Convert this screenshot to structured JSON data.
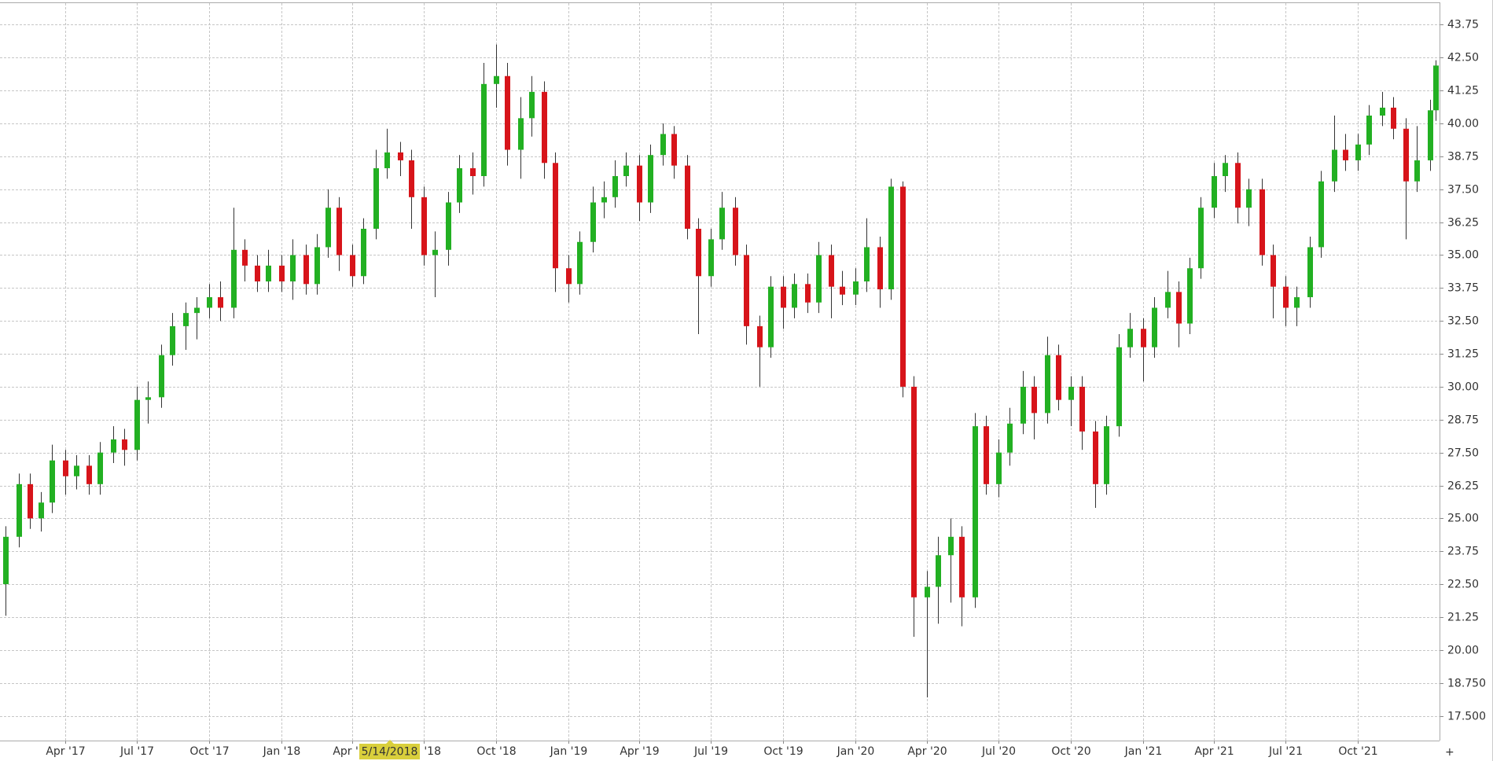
{
  "chart_data": {
    "type": "candlestick",
    "x": [
      "2017-01-15",
      "2017-02-01",
      "2017-02-15",
      "2017-03-01",
      "2017-03-15",
      "2017-04-01",
      "2017-04-15",
      "2017-05-01",
      "2017-05-15",
      "2017-06-01",
      "2017-06-15",
      "2017-07-01",
      "2017-07-15",
      "2017-08-01",
      "2017-08-15",
      "2017-09-01",
      "2017-09-15",
      "2017-10-01",
      "2017-10-15",
      "2017-11-01",
      "2017-11-15",
      "2017-12-01",
      "2017-12-15",
      "2018-01-01",
      "2018-01-15",
      "2018-02-01",
      "2018-02-15",
      "2018-03-01",
      "2018-03-15",
      "2018-04-01",
      "2018-04-15",
      "2018-05-01",
      "2018-05-15",
      "2018-06-01",
      "2018-06-15",
      "2018-07-01",
      "2018-07-15",
      "2018-08-01",
      "2018-08-15",
      "2018-09-01",
      "2018-09-15",
      "2018-10-01",
      "2018-10-15",
      "2018-11-01",
      "2018-11-15",
      "2018-12-01",
      "2018-12-15",
      "2019-01-01",
      "2019-01-15",
      "2019-02-01",
      "2019-02-15",
      "2019-03-01",
      "2019-03-15",
      "2019-04-01",
      "2019-04-15",
      "2019-05-01",
      "2019-05-15",
      "2019-06-01",
      "2019-06-15",
      "2019-07-01",
      "2019-07-15",
      "2019-08-01",
      "2019-08-15",
      "2019-09-01",
      "2019-09-15",
      "2019-10-01",
      "2019-10-15",
      "2019-11-01",
      "2019-11-15",
      "2019-12-01",
      "2019-12-15",
      "2020-01-01",
      "2020-01-15",
      "2020-02-01",
      "2020-02-15",
      "2020-03-01",
      "2020-03-15",
      "2020-04-01",
      "2020-04-15",
      "2020-05-01",
      "2020-05-15",
      "2020-06-01",
      "2020-06-15",
      "2020-07-01",
      "2020-07-15",
      "2020-08-01",
      "2020-08-15",
      "2020-09-01",
      "2020-09-15",
      "2020-10-01",
      "2020-10-15",
      "2020-11-01",
      "2020-11-15",
      "2020-12-01",
      "2020-12-15",
      "2021-01-01",
      "2021-01-15",
      "2021-02-01",
      "2021-02-15",
      "2021-03-01",
      "2021-03-15",
      "2021-04-01",
      "2021-04-15",
      "2021-05-01",
      "2021-05-15",
      "2021-06-01",
      "2021-06-15",
      "2021-07-01",
      "2021-07-15",
      "2021-08-01",
      "2021-08-15",
      "2021-09-01",
      "2021-09-15",
      "2021-10-01",
      "2021-10-15",
      "2021-11-01",
      "2021-11-15",
      "2021-12-01",
      "2021-12-15",
      "2022-01-01",
      "2022-01-08"
    ],
    "open": [
      22.5,
      24.3,
      26.3,
      25.0,
      25.6,
      27.2,
      26.6,
      27.0,
      26.3,
      27.5,
      28.0,
      27.6,
      29.5,
      29.6,
      31.2,
      32.3,
      32.8,
      33.0,
      33.4,
      33.0,
      35.2,
      34.6,
      34.0,
      34.6,
      34.0,
      35.0,
      33.9,
      35.3,
      36.8,
      35.0,
      34.2,
      36.0,
      38.3,
      38.9,
      38.6,
      37.2,
      35.0,
      35.2,
      37.0,
      38.3,
      38.0,
      41.5,
      41.8,
      39.0,
      40.2,
      41.2,
      38.5,
      34.5,
      33.9,
      35.5,
      37.0,
      37.2,
      38.0,
      38.4,
      37.0,
      38.8,
      39.6,
      38.4,
      36.0,
      34.2,
      35.6,
      36.8,
      35.0,
      32.3,
      31.5,
      33.8,
      33.0,
      33.9,
      33.2,
      35.0,
      33.8,
      33.5,
      34.0,
      35.3,
      33.7,
      37.6,
      30.0,
      22.0,
      22.4,
      23.6,
      24.3,
      22.0,
      28.5,
      26.3,
      27.5,
      28.6,
      30.0,
      29.0,
      31.2,
      29.5,
      30.0,
      28.3,
      26.3,
      28.5,
      31.5,
      32.2,
      31.5,
      33.0,
      33.6,
      32.4,
      34.5,
      36.8,
      38.0,
      38.5,
      36.8,
      37.5,
      35.0,
      33.8,
      33.0,
      33.4,
      35.3,
      37.8,
      39.0,
      38.6,
      39.2,
      40.3,
      40.6,
      39.8,
      37.8,
      38.6,
      40.5
    ],
    "high": [
      24.7,
      26.7,
      26.7,
      26.0,
      27.8,
      27.6,
      27.4,
      27.4,
      27.9,
      28.5,
      28.4,
      30.0,
      30.2,
      31.6,
      32.8,
      33.2,
      33.4,
      33.9,
      34.0,
      36.8,
      35.6,
      35.0,
      35.2,
      35.0,
      35.6,
      35.4,
      35.8,
      37.5,
      37.2,
      35.4,
      36.4,
      39.0,
      39.8,
      39.3,
      39.0,
      37.6,
      35.9,
      37.4,
      38.8,
      38.9,
      42.3,
      43.0,
      42.3,
      41.0,
      41.8,
      41.6,
      38.9,
      35.0,
      35.9,
      37.6,
      37.8,
      38.6,
      38.9,
      38.8,
      39.2,
      40.0,
      39.9,
      38.8,
      36.4,
      36.0,
      37.4,
      37.2,
      35.4,
      32.7,
      34.2,
      34.2,
      34.3,
      34.3,
      35.5,
      35.4,
      34.4,
      34.5,
      36.4,
      35.7,
      37.9,
      37.8,
      30.4,
      23.0,
      24.3,
      25.0,
      24.7,
      29.0,
      28.9,
      28.0,
      29.2,
      30.6,
      30.4,
      31.9,
      31.6,
      30.4,
      30.4,
      28.7,
      28.9,
      32.0,
      32.8,
      32.6,
      33.4,
      34.4,
      34.0,
      34.9,
      37.2,
      38.5,
      38.8,
      38.9,
      37.9,
      37.9,
      35.4,
      34.2,
      33.8,
      35.7,
      38.2,
      40.3,
      39.6,
      39.6,
      40.7,
      41.2,
      41.0,
      40.2,
      39.9,
      40.9,
      42.4
    ],
    "low": [
      21.3,
      23.9,
      24.6,
      24.5,
      25.2,
      25.9,
      26.1,
      25.9,
      25.9,
      27.1,
      27.0,
      27.2,
      28.6,
      29.2,
      30.8,
      31.4,
      31.8,
      32.6,
      32.5,
      32.6,
      34.0,
      33.6,
      33.6,
      33.6,
      33.3,
      33.5,
      33.5,
      34.9,
      34.4,
      33.8,
      33.9,
      35.6,
      37.9,
      38.0,
      36.0,
      34.6,
      33.4,
      34.6,
      36.6,
      37.3,
      37.6,
      40.6,
      38.4,
      37.9,
      39.5,
      37.9,
      33.6,
      33.2,
      33.5,
      35.1,
      36.4,
      36.8,
      37.6,
      36.3,
      36.6,
      38.4,
      37.9,
      35.6,
      32.0,
      33.8,
      35.2,
      34.6,
      31.6,
      30.0,
      31.1,
      32.2,
      32.6,
      32.8,
      32.8,
      32.6,
      33.1,
      33.1,
      33.6,
      33.0,
      33.3,
      29.6,
      20.5,
      18.2,
      21.0,
      21.8,
      20.9,
      21.6,
      25.9,
      25.8,
      27.0,
      28.2,
      28.0,
      28.6,
      29.1,
      28.5,
      27.6,
      25.4,
      25.9,
      28.1,
      31.1,
      30.2,
      31.1,
      32.6,
      31.5,
      32.0,
      34.1,
      36.4,
      37.4,
      36.2,
      36.1,
      34.6,
      32.6,
      32.3,
      32.3,
      33.0,
      34.9,
      37.4,
      38.2,
      38.2,
      38.8,
      39.9,
      39.4,
      35.6,
      37.4,
      38.2,
      40.1
    ],
    "close": [
      24.3,
      26.3,
      25.0,
      25.6,
      27.2,
      26.6,
      27.0,
      26.3,
      27.5,
      28.0,
      27.6,
      29.5,
      29.6,
      31.2,
      32.3,
      32.8,
      33.0,
      33.4,
      33.0,
      35.2,
      34.6,
      34.0,
      34.6,
      34.0,
      35.0,
      33.9,
      35.3,
      36.8,
      35.0,
      34.2,
      36.0,
      38.3,
      38.9,
      38.6,
      37.2,
      35.0,
      35.2,
      37.0,
      38.3,
      38.0,
      41.5,
      41.8,
      39.0,
      40.2,
      41.2,
      38.5,
      34.5,
      33.9,
      35.5,
      37.0,
      37.2,
      38.0,
      38.4,
      37.0,
      38.8,
      39.6,
      38.4,
      36.0,
      34.2,
      35.6,
      36.8,
      35.0,
      32.3,
      31.5,
      33.8,
      33.0,
      33.9,
      33.2,
      35.0,
      33.8,
      33.5,
      34.0,
      35.3,
      33.7,
      37.6,
      30.0,
      22.0,
      22.4,
      23.6,
      24.3,
      22.0,
      28.5,
      26.3,
      27.5,
      28.6,
      30.0,
      29.0,
      31.2,
      29.5,
      30.0,
      28.3,
      26.3,
      28.5,
      31.5,
      32.2,
      31.5,
      33.0,
      33.6,
      32.4,
      34.5,
      36.8,
      38.0,
      38.5,
      36.8,
      37.5,
      35.0,
      33.8,
      33.0,
      33.4,
      35.3,
      37.8,
      39.0,
      38.6,
      39.2,
      40.3,
      40.6,
      39.8,
      37.8,
      38.6,
      40.5,
      42.2
    ],
    "up_color": "#22b022",
    "down_color": "#d7141a",
    "xlim": [
      "2017-01-08",
      "2022-01-13"
    ],
    "xticks": [
      {
        "value": "2017-04-01",
        "label": "Apr '17"
      },
      {
        "value": "2017-07-01",
        "label": "Jul '17"
      },
      {
        "value": "2017-10-01",
        "label": "Oct '17"
      },
      {
        "value": "2018-01-01",
        "label": "Jan '18"
      },
      {
        "value": "2018-04-01",
        "label": "Apr '18"
      },
      {
        "value": "2018-07-01",
        "label": "Jul '18"
      },
      {
        "value": "2018-10-01",
        "label": "Oct '18"
      },
      {
        "value": "2019-01-01",
        "label": "Jan '19"
      },
      {
        "value": "2019-04-01",
        "label": "Apr '19"
      },
      {
        "value": "2019-07-01",
        "label": "Jul '19"
      },
      {
        "value": "2019-10-01",
        "label": "Oct '19"
      },
      {
        "value": "2020-01-01",
        "label": "Jan '20"
      },
      {
        "value": "2020-04-01",
        "label": "Apr '20"
      },
      {
        "value": "2020-07-01",
        "label": "Jul '20"
      },
      {
        "value": "2020-10-01",
        "label": "Oct '20"
      },
      {
        "value": "2021-01-01",
        "label": "Jan '21"
      },
      {
        "value": "2021-04-01",
        "label": "Apr '21"
      },
      {
        "value": "2021-07-01",
        "label": "Jul '21"
      },
      {
        "value": "2021-10-01",
        "label": "Oct '21"
      }
    ],
    "ylim": [
      16.56,
      44.57
    ],
    "yticks": [
      {
        "value": 17.5,
        "label": "17.500"
      },
      {
        "value": 18.75,
        "label": "18.750"
      },
      {
        "value": 20,
        "label": "20.00"
      },
      21.25,
      {
        "value": 22.5,
        "label": "22.50"
      },
      23.75,
      {
        "value": 25,
        "label": "25.00"
      },
      26.25,
      {
        "value": 27.5,
        "label": "27.50"
      },
      28.75,
      {
        "value": 30,
        "label": "30.00"
      },
      31.25,
      {
        "value": 32.5,
        "label": "32.50"
      },
      33.75,
      {
        "value": 35,
        "label": "35.00"
      },
      36.25,
      {
        "value": 37.5,
        "label": "37.50"
      },
      38.75,
      {
        "value": 40,
        "label": "40.00"
      },
      41.25,
      {
        "value": 42.5,
        "label": "42.50"
      },
      43.75
    ],
    "grid": true,
    "crosshair_label": "5/14/2018"
  }
}
